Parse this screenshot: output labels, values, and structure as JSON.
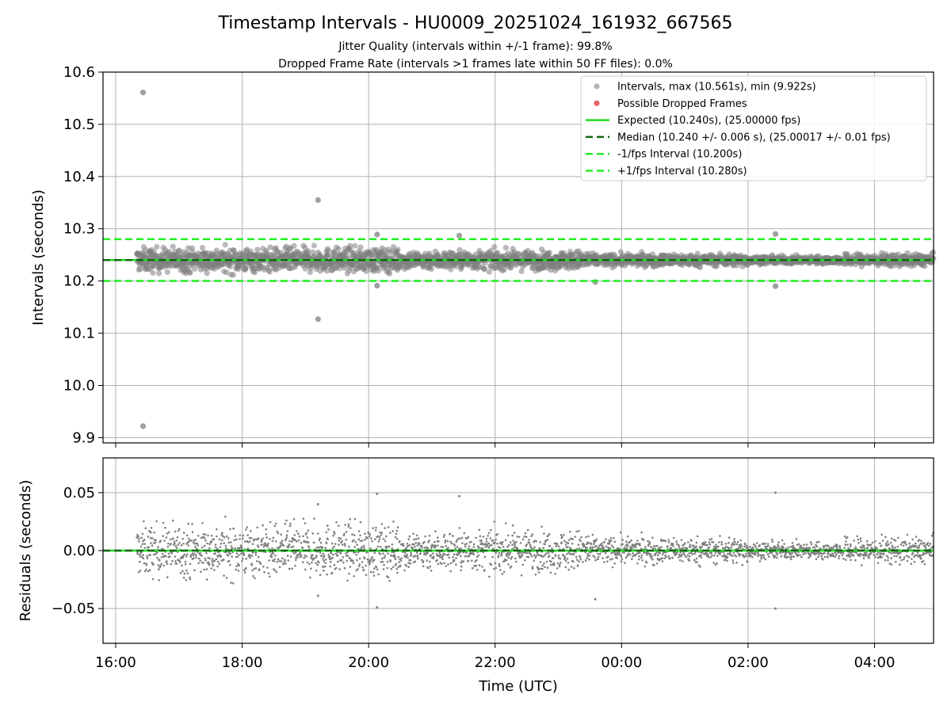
{
  "title": "Timestamp Intervals - HU0009_20251024_161932_667565",
  "subtitle1": "Jitter Quality (intervals within +/-1 frame): 99.8%",
  "subtitle2": "Dropped Frame Rate (intervals >1 frames late within 50 FF files): 0.0%",
  "colors": {
    "points": "#808080",
    "dropped": "#e8474c",
    "expected": "#22dd22",
    "median": "#116611",
    "fps_bounds": "#22ee22",
    "grid": "#b0b0b0"
  },
  "chart_data": [
    {
      "type": "scatter",
      "ylabel": "Intervals (seconds)",
      "xlim": [
        "15:48",
        "04:56"
      ],
      "ylim": [
        9.89,
        10.6
      ],
      "yticks": [
        "9.9",
        "10.0",
        "10.1",
        "10.2",
        "10.3",
        "10.4",
        "10.5",
        "10.6"
      ],
      "grid": true,
      "legend_position": "top-right",
      "legend": [
        {
          "label": "Intervals, max (10.561s), min (9.922s)",
          "marker": "point"
        },
        {
          "label": "Possible Dropped Frames",
          "marker": "dropped"
        },
        {
          "label": "Expected (10.240s), (25.00000 fps)",
          "marker": "solid"
        },
        {
          "label": "Median (10.240 +/- 0.006 s), (25.00017 +/- 0.01 fps)",
          "marker": "dashed-dark"
        },
        {
          "label": "-1/fps Interval (10.200s)",
          "marker": "dashed-bright"
        },
        {
          "label": "+1/fps Interval (10.280s)",
          "marker": "dashed-bright"
        }
      ],
      "reference_lines": {
        "expected": 10.24,
        "median": 10.24,
        "lower": 10.2,
        "upper": 10.28
      },
      "data_span": [
        "16:20",
        "04:56"
      ],
      "band_center": 10.24,
      "outliers": [
        {
          "x": "16:26",
          "y": 10.561
        },
        {
          "x": "16:26",
          "y": 9.922
        },
        {
          "x": "19:12",
          "y": 10.355
        },
        {
          "x": "19:12",
          "y": 10.127
        },
        {
          "x": "20:08",
          "y": 10.289
        },
        {
          "x": "20:08",
          "y": 10.191
        },
        {
          "x": "21:26",
          "y": 10.287
        },
        {
          "x": "23:35",
          "y": 10.198
        },
        {
          "x": "02:26",
          "y": 10.29
        },
        {
          "x": "02:26",
          "y": 10.19
        }
      ]
    },
    {
      "type": "scatter",
      "xlabel": "Time (UTC)",
      "ylabel": "Residuals (seconds)",
      "xlim": [
        "15:48",
        "04:56"
      ],
      "ylim": [
        -0.08,
        0.08
      ],
      "yticks": [
        "−0.05",
        "0.00",
        "0.05"
      ],
      "xticks": [
        "16:00",
        "18:00",
        "20:00",
        "22:00",
        "00:00",
        "02:00",
        "04:00"
      ],
      "grid": true,
      "reference_line": 0.0,
      "outliers": [
        {
          "x": "20:08",
          "y": 0.049
        },
        {
          "x": "20:08",
          "y": -0.049
        },
        {
          "x": "21:26",
          "y": 0.047
        },
        {
          "x": "23:35",
          "y": -0.042
        },
        {
          "x": "02:26",
          "y": 0.05
        },
        {
          "x": "02:26",
          "y": -0.05
        },
        {
          "x": "19:12",
          "y": 0.04
        },
        {
          "x": "19:12",
          "y": -0.039
        }
      ]
    }
  ]
}
